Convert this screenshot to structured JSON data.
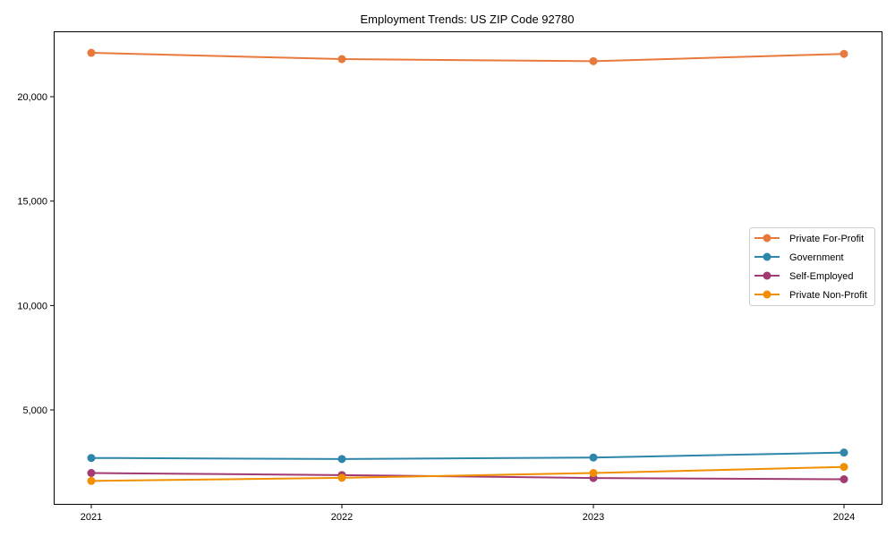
{
  "chart_data": {
    "type": "line",
    "title": "Employment Trends: US ZIP Code 92780",
    "xlabel": "",
    "ylabel": "",
    "categories": [
      "2021",
      "2022",
      "2023",
      "2024"
    ],
    "series": [
      {
        "name": "Private For-Profit",
        "color": "#E8793D",
        "values": [
          22100,
          21800,
          21700,
          22050
        ]
      },
      {
        "name": "Government",
        "color": "#2E86AB",
        "values": [
          2700,
          2650,
          2720,
          2960
        ]
      },
      {
        "name": "Self-Employed",
        "color": "#A23B72",
        "values": [
          1980,
          1880,
          1740,
          1680
        ]
      },
      {
        "name": "Private Non-Profit",
        "color": "#F18F01",
        "values": [
          1600,
          1750,
          1980,
          2270
        ]
      }
    ],
    "yticks": [
      5000,
      10000,
      15000,
      20000
    ],
    "ytick_labels": [
      "5,000",
      "10,000",
      "15,000",
      "20,000"
    ],
    "ylim": [
      0,
      23000
    ],
    "grid": false,
    "legend_position": "center right",
    "markers": true
  }
}
